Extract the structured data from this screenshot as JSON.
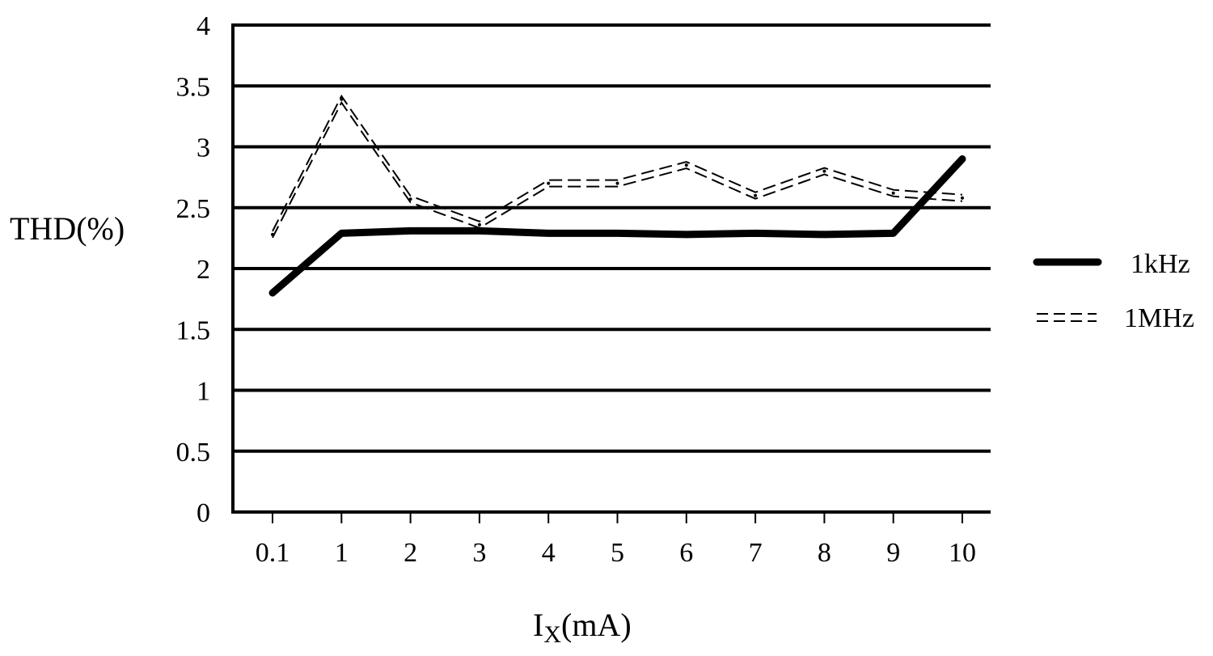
{
  "chart_data": {
    "type": "line",
    "categories": [
      "0.1",
      "1",
      "2",
      "3",
      "4",
      "5",
      "6",
      "7",
      "8",
      "9",
      "10"
    ],
    "xlabel_main": "I",
    "xlabel_sub": "X",
    "xlabel_tail": "(mA)",
    "ylabel": "THD(%)",
    "ylim": [
      0,
      4
    ],
    "yticks": [
      0,
      0.5,
      1,
      1.5,
      2,
      2.5,
      3,
      3.5,
      4
    ],
    "ytick_labels": [
      "0",
      "0.5",
      "1",
      "1.5",
      "2",
      "2.5",
      "3",
      "3.5",
      "4"
    ],
    "grid": "horizontal",
    "legend_position": "right",
    "series": [
      {
        "name": "1kHz",
        "style": "solid-thick",
        "color": "#000000",
        "values": [
          1.8,
          2.29,
          2.31,
          2.31,
          2.29,
          2.29,
          2.28,
          2.29,
          2.28,
          2.29,
          2.9
        ]
      },
      {
        "name": "1MHz",
        "style": "double-dashed",
        "color": "#000000",
        "values": [
          2.28,
          3.39,
          2.57,
          2.36,
          2.7,
          2.7,
          2.85,
          2.6,
          2.8,
          2.62,
          2.58
        ]
      }
    ]
  }
}
